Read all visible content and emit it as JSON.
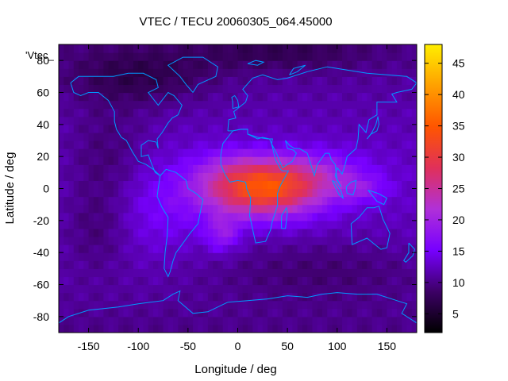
{
  "chart_data": {
    "type": "heatmap",
    "title": "VTEC / TECU 20060305_064.45000",
    "xlabel": "Longitude / deg",
    "ylabel": "Latitude / deg",
    "xlim": [
      -180,
      180
    ],
    "ylim": [
      -90,
      90
    ],
    "x_ticks": [
      -150,
      -100,
      -50,
      0,
      50,
      100,
      150
    ],
    "y_ticks": [
      -80,
      -60,
      -40,
      -20,
      0,
      20,
      40,
      60,
      80
    ],
    "colorbar": {
      "range": [
        2,
        48
      ],
      "ticks": [
        5,
        10,
        15,
        20,
        25,
        30,
        35,
        40,
        45
      ],
      "palette": [
        "#000000",
        "#3d0066",
        "#7700ff",
        "#b030d8",
        "#e0305a",
        "#ff5500",
        "#ffa000",
        "#ffee00"
      ]
    },
    "legend_key": "'Vtec_",
    "overlay": "coastlines",
    "coastline_color": "#0099ff",
    "features": {
      "background_vtec": 10,
      "anomaly_peak_lon": 25,
      "anomaly_peak_lat": 0,
      "anomaly_peak_vtec": 33
    }
  }
}
